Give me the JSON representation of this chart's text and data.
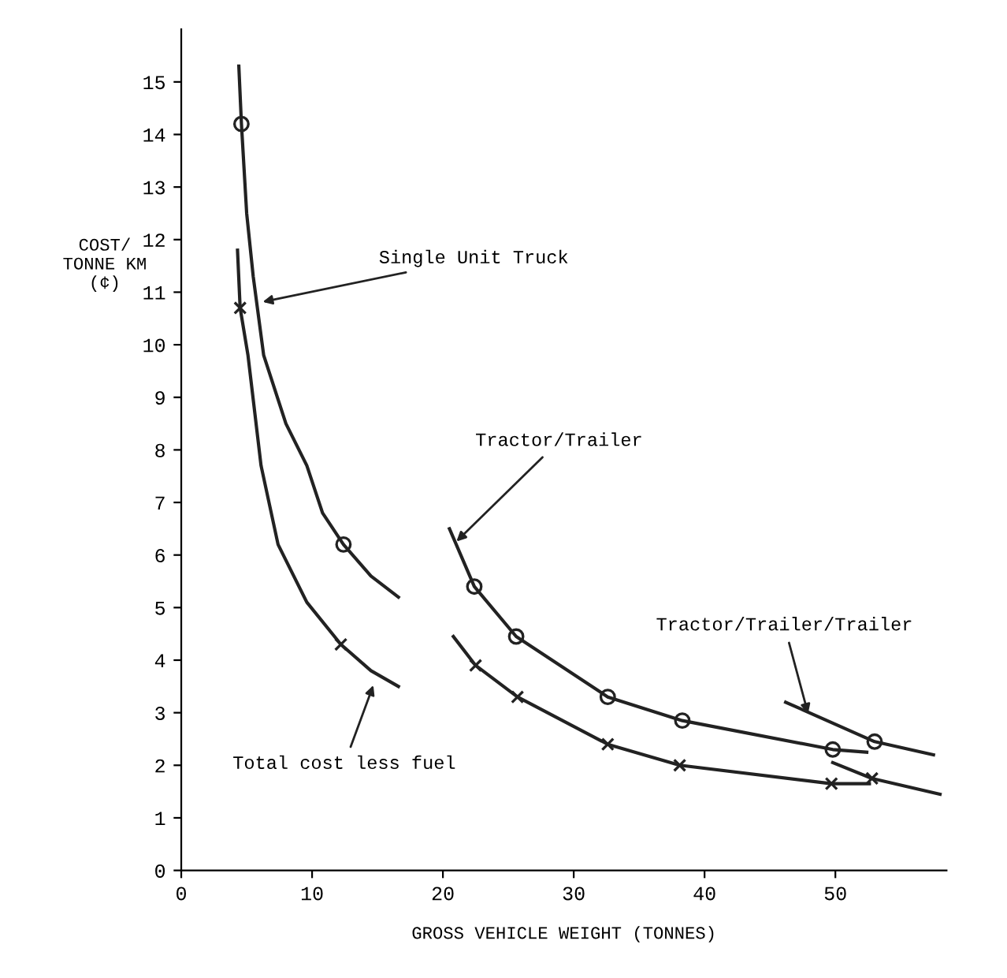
{
  "chart_data": {
    "type": "line",
    "xlabel": "GROSS VEHICLE WEIGHT (TONNES)",
    "ylabel": "COST/\nTONNE KM\n(¢)",
    "xlim": [
      0,
      58.5
    ],
    "ylim": [
      0,
      16
    ],
    "xticks": [
      0,
      10,
      20,
      30,
      40,
      50
    ],
    "yticks": [
      0,
      1,
      2,
      3,
      4,
      5,
      6,
      7,
      8,
      9,
      10,
      11,
      12,
      13,
      14,
      15
    ],
    "grid": false,
    "legend": false,
    "line_style": "solid",
    "marker": "none",
    "series": [
      {
        "color": "#222222",
        "x": [
          4.4,
          4.6,
          5.0,
          5.5,
          6.3,
          8.0,
          9.6,
          10.8,
          12.4,
          14.5,
          16.6
        ],
        "values": [
          15.3,
          14.2,
          12.5,
          11.3,
          9.8,
          8.5,
          7.7,
          6.8,
          6.2,
          5.6,
          5.2
        ]
      },
      {
        "color": "#222222",
        "x": [
          4.3,
          4.5,
          5.1,
          6.1,
          7.4,
          9.6,
          12.2,
          14.5,
          16.6
        ],
        "values": [
          11.8,
          10.7,
          9.8,
          7.7,
          6.2,
          5.1,
          4.3,
          3.8,
          3.5
        ]
      },
      {
        "color": "#222222",
        "x": [
          20.5,
          22.4,
          25.6,
          32.6,
          38.3,
          49.8,
          52.4
        ],
        "values": [
          6.5,
          5.4,
          4.45,
          3.3,
          2.85,
          2.3,
          2.25
        ]
      },
      {
        "color": "#222222",
        "x": [
          20.8,
          22.5,
          25.7,
          32.6,
          38.1,
          49.7,
          52.6
        ],
        "values": [
          4.45,
          3.9,
          3.3,
          2.4,
          2.0,
          1.65,
          1.65
        ]
      },
      {
        "color": "#222222",
        "x": [
          46.2,
          53.0,
          57.5
        ],
        "values": [
          3.2,
          2.45,
          2.2
        ]
      },
      {
        "color": "#222222",
        "x": [
          49.8,
          52.8,
          58.0
        ],
        "values": [
          2.05,
          1.75,
          1.45
        ]
      },
      {
        "type": "scatter",
        "marker": "circle",
        "color": "#222222",
        "x": [
          4.6,
          12.4,
          22.4,
          25.6,
          32.6,
          38.3,
          49.8,
          53.0
        ],
        "values": [
          14.2,
          6.2,
          5.4,
          4.45,
          3.3,
          2.85,
          2.3,
          2.45
        ]
      },
      {
        "type": "scatter",
        "marker": "cross",
        "color": "#222222",
        "x": [
          4.5,
          12.2,
          22.5,
          25.7,
          32.6,
          38.1,
          49.7,
          52.8
        ],
        "values": [
          10.7,
          4.3,
          3.9,
          3.3,
          2.4,
          2.0,
          1.65,
          1.75
        ]
      }
    ],
    "annotations": [
      {
        "text": "Single Unit Truck",
        "x": 5.9,
        "y": 10.8
      },
      {
        "text": "Tractor/Trailer",
        "x": 20.8,
        "y": 6.2
      },
      {
        "text": "Tractor/Trailer/Trailer",
        "x": 48.0,
        "y": 2.9
      },
      {
        "text": "Total cost less fuel",
        "x": 14.8,
        "y": 3.6
      }
    ]
  }
}
